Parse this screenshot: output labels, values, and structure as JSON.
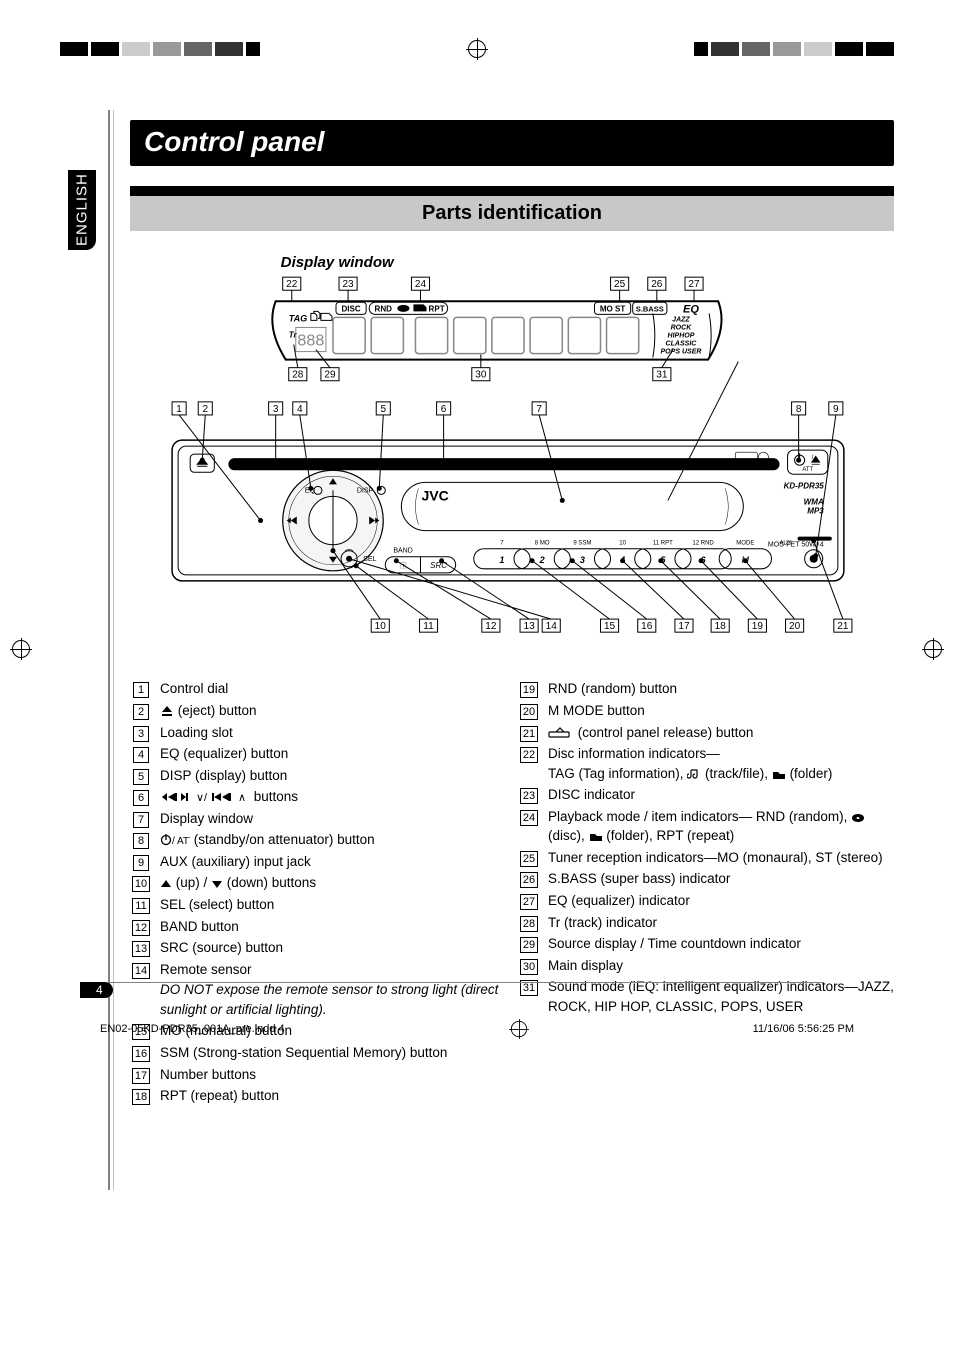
{
  "meta": {
    "language_tab": "ENGLISH",
    "page_number": "4",
    "footer_left": "EN02-05KD-PDR35_001A_pre.indd   4",
    "footer_right": "11/16/06   5:56:25 PM"
  },
  "title": "Control panel",
  "section_title": "Parts identification",
  "diagram": {
    "subheading": "Display window",
    "top_nums": [
      "22",
      "23",
      "24",
      "25",
      "26",
      "27"
    ],
    "mid_top_nums": [
      "28",
      "29",
      "30",
      "31"
    ],
    "row1_nums": [
      "1",
      "2",
      "3",
      "4",
      "5",
      "6",
      "7",
      "8",
      "9"
    ],
    "row2_nums": [
      "10",
      "11",
      "12",
      "13",
      "14",
      "15",
      "16",
      "17",
      "18",
      "19",
      "20",
      "21"
    ],
    "disp_indicators": {
      "disc": "DISC",
      "rnd": "RND",
      "rpt": "RPT",
      "most": "MO ST",
      "sbass": "S.BASS",
      "eq": "EQ",
      "tag": "TAG",
      "tr": "Tr",
      "modes": [
        "JAZZ",
        "ROCK",
        "HIPHOP",
        "CLASSIC",
        "POPS USER"
      ]
    },
    "panel": {
      "brand": "JVC",
      "model": "KD-PDR35",
      "codec": "WMA\nMP3",
      "power": "MOS-FET 50W×4",
      "sel": "SEL",
      "band": "BAND",
      "src": "SRC",
      "eq": "EQ",
      "disp": "DISP",
      "buttons": [
        "1",
        "2",
        "3",
        "4",
        "5",
        "6"
      ],
      "btn_top": [
        "7",
        "8  MO",
        "9  SSM",
        "10",
        "11  RPT",
        "12  RND"
      ],
      "mode": "MODE",
      "m": "M",
      "aux": "AUX",
      "att": "ATT"
    }
  },
  "legend_left": [
    {
      "n": "1",
      "t": "Control dial"
    },
    {
      "n": "2",
      "t": "",
      "sym": "eject",
      "after": "(eject) button"
    },
    {
      "n": "3",
      "t": "Loading slot"
    },
    {
      "n": "4",
      "t": "EQ (equalizer) button"
    },
    {
      "n": "5",
      "t": "DISP (display) button"
    },
    {
      "n": "6",
      "t": "",
      "sym": "nav",
      "after": "buttons"
    },
    {
      "n": "7",
      "t": "Display window"
    },
    {
      "n": "8",
      "t": "",
      "sym": "power",
      "after": "(standby/on attenuator) button"
    },
    {
      "n": "9",
      "t": "AUX (auxiliary) input jack"
    },
    {
      "n": "10",
      "t": "",
      "sym": "updown",
      "after": "(down) buttons",
      "mid": "(up) / "
    },
    {
      "n": "11",
      "t": "SEL (select) button"
    },
    {
      "n": "12",
      "t": "BAND button"
    },
    {
      "n": "13",
      "t": "SRC (source) button"
    },
    {
      "n": "14",
      "t": "Remote sensor",
      "note": "DO NOT expose the remote sensor to strong light (direct sunlight or artificial lighting)."
    },
    {
      "n": "15",
      "t": "MO (monaural) button"
    },
    {
      "n": "16",
      "t": "SSM (Strong-station Sequential Memory) button"
    },
    {
      "n": "17",
      "t": "Number buttons"
    },
    {
      "n": "18",
      "t": "RPT (repeat) button"
    }
  ],
  "legend_right": [
    {
      "n": "19",
      "t": "RND (random) button"
    },
    {
      "n": "20",
      "t": "M MODE button"
    },
    {
      "n": "21",
      "t": "",
      "sym": "release",
      "after": "(control panel release) button"
    },
    {
      "n": "22",
      "t": "Disc information indicators—",
      "extra": "TAG (Tag information), ",
      "sym2": "trackfile",
      "mid2": " (track/file), ",
      "sym3": "folder",
      "after2": " (folder)"
    },
    {
      "n": "23",
      "t": "DISC indicator"
    },
    {
      "n": "24",
      "t": "Playback mode / item indicators— RND (random), ",
      "sym": "disc",
      "mid": " (disc), ",
      "sym2": "folder",
      "after": " (folder), RPT (repeat)"
    },
    {
      "n": "25",
      "t": "Tuner reception indicators—MO (monaural), ST (stereo)"
    },
    {
      "n": "26",
      "t": "S.BASS (super bass) indicator"
    },
    {
      "n": "27",
      "t": "EQ (equalizer) indicator"
    },
    {
      "n": "28",
      "t": "Tr (track) indicator"
    },
    {
      "n": "29",
      "t": "Source display / Time countdown indicator"
    },
    {
      "n": "30",
      "t": "Main display"
    },
    {
      "n": "31",
      "t": "Sound mode (iEQ: intelligent equalizer) indicators—JAZZ, ROCK, HIP HOP, CLASSIC, POPS, USER"
    }
  ]
}
